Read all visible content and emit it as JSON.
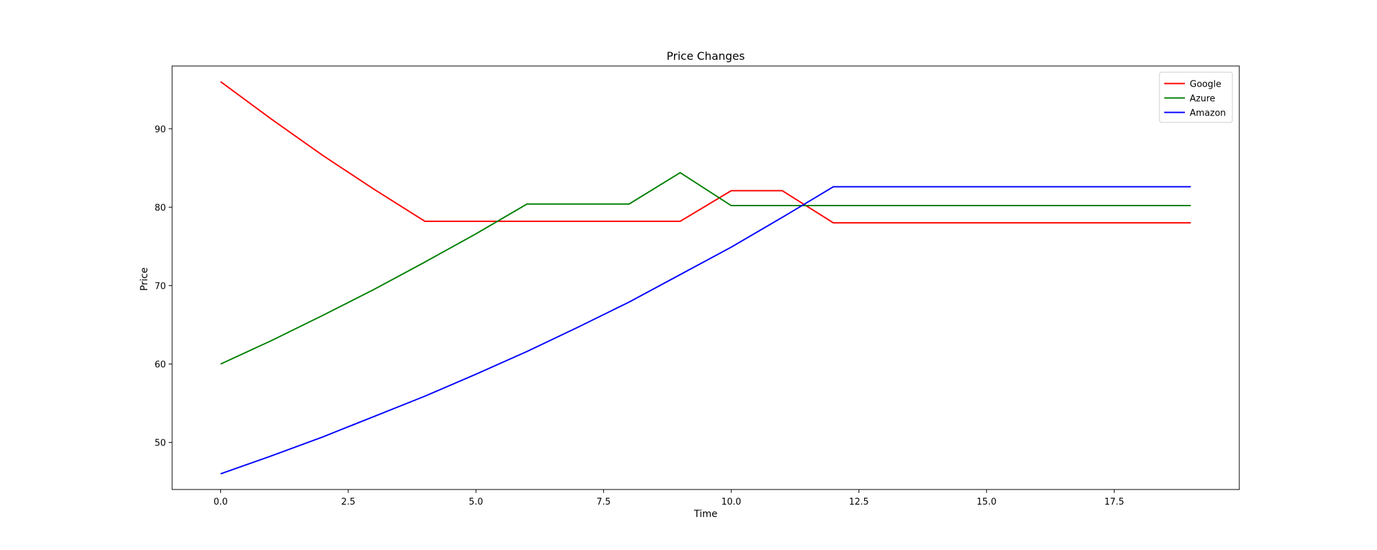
{
  "chart_data": {
    "type": "line",
    "title": "Price Changes",
    "xlabel": "Time",
    "ylabel": "Price",
    "xlim": [
      -0.95,
      19.95
    ],
    "ylim": [
      44.0,
      98.0
    ],
    "xticks": [
      0.0,
      2.5,
      5.0,
      7.5,
      10.0,
      12.5,
      15.0,
      17.5
    ],
    "xtick_labels": [
      "0.0",
      "2.5",
      "5.0",
      "7.5",
      "10.0",
      "12.5",
      "15.0",
      "17.5"
    ],
    "yticks": [
      50,
      60,
      70,
      80,
      90
    ],
    "ytick_labels": [
      "50",
      "60",
      "70",
      "80",
      "90"
    ],
    "grid": false,
    "legend_position": "top-right",
    "x": [
      0,
      1,
      2,
      3,
      4,
      5,
      6,
      7,
      8,
      9,
      10,
      11,
      12,
      13,
      14,
      15,
      16,
      17,
      18,
      19
    ],
    "series": [
      {
        "name": "Google",
        "color": "#ff0000",
        "values": [
          96.0,
          91.2,
          86.6,
          82.3,
          78.2,
          78.2,
          78.2,
          78.2,
          78.2,
          78.2,
          82.1,
          82.1,
          78.0,
          78.0,
          78.0,
          78.0,
          78.0,
          78.0,
          78.0,
          78.0
        ]
      },
      {
        "name": "Azure",
        "color": "#008000",
        "values": [
          60.0,
          63.0,
          66.2,
          69.5,
          73.0,
          76.6,
          80.4,
          80.4,
          80.4,
          84.4,
          80.2,
          80.2,
          80.2,
          80.2,
          80.2,
          80.2,
          80.2,
          80.2,
          80.2,
          80.2
        ]
      },
      {
        "name": "Amazon",
        "color": "#0000ff",
        "values": [
          46.0,
          48.3,
          50.7,
          53.3,
          55.9,
          58.7,
          61.6,
          64.7,
          67.9,
          71.4,
          74.9,
          78.7,
          82.6,
          82.6,
          82.6,
          82.6,
          82.6,
          82.6,
          82.6,
          82.6
        ]
      }
    ]
  }
}
